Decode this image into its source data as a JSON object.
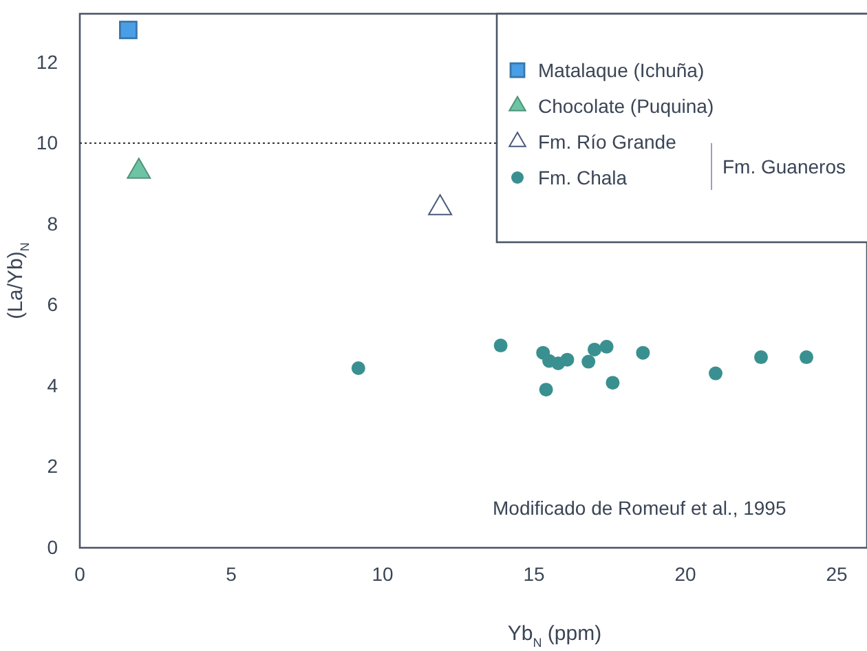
{
  "chart_data": {
    "type": "scatter",
    "xlabel": "Yb$_{N}$ (ppm)",
    "ylabel": "(La/Yb)$_{N}$",
    "xlim": [
      0,
      26
    ],
    "ylim": [
      0,
      13.2
    ],
    "xticks": [
      0,
      5,
      10,
      15,
      20,
      25
    ],
    "yticks": [
      0,
      2,
      4,
      6,
      8,
      10,
      12
    ],
    "grid": false,
    "legend": "top right",
    "legend_title": "Fm. Guaneros",
    "ref_lines": [
      {
        "axis": "y",
        "value": 10,
        "line_style": "dotted",
        "color": "#333333"
      }
    ],
    "annotations": [
      "Modificado de Romeuf et al., 1995"
    ],
    "series": [
      {
        "name": "Matalaque (Ichuña)",
        "color": "#4a9ee6",
        "marker": "square",
        "x": [
          1.6
        ],
        "values": [
          12.8
        ]
      },
      {
        "name": "Chocolate (Puquina)",
        "color": "#6cc4a4",
        "marker": "triangle",
        "x": [
          1.95
        ],
        "values": [
          9.3
        ]
      },
      {
        "name": "Fm. Río Grande",
        "color": "#ffffff",
        "marker": "triangle",
        "x": [
          11.9
        ],
        "values": [
          8.4
        ]
      },
      {
        "name": "Fm. Chala",
        "color": "#3a9090",
        "marker": "circle",
        "x": [
          9.2,
          13.9,
          15.3,
          15.5,
          15.8,
          16.1,
          15.4,
          16.8,
          17.0,
          17.4,
          17.6,
          18.6,
          21.0,
          22.5,
          24.0
        ],
        "values": [
          4.44,
          5.0,
          4.82,
          4.62,
          4.56,
          4.65,
          3.91,
          4.6,
          4.9,
          4.97,
          4.08,
          4.82,
          4.31,
          4.71,
          4.71
        ]
      }
    ]
  }
}
